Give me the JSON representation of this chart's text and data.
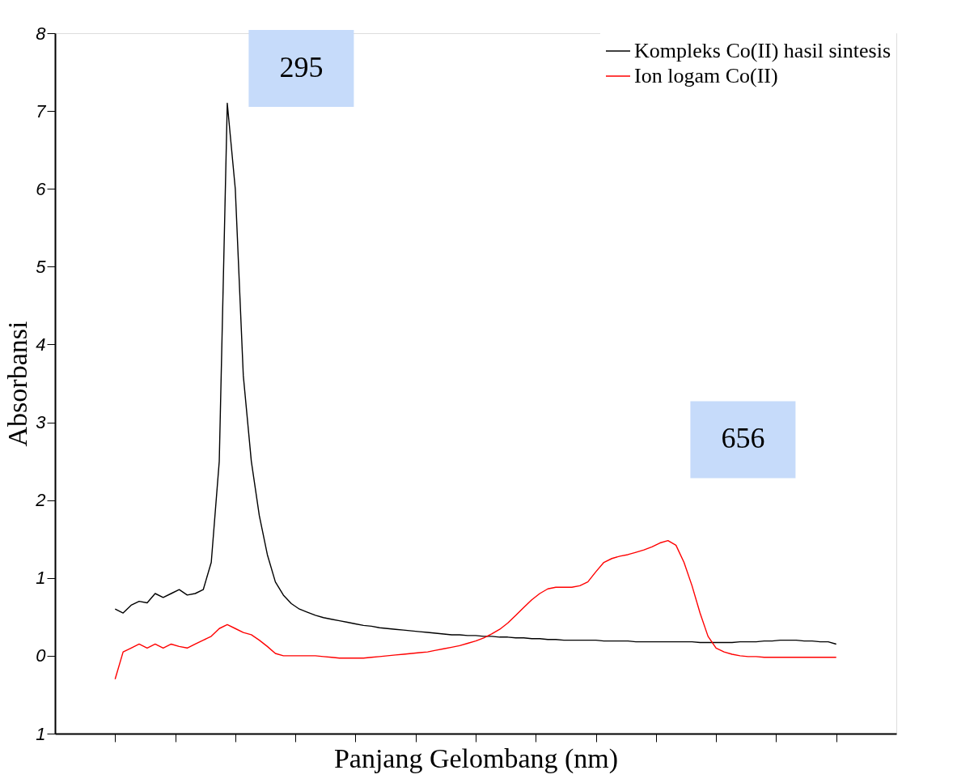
{
  "chart_data": {
    "type": "line",
    "xlabel": "Panjang Gelombang (nm)",
    "ylabel": "Absorbansi",
    "categories": [
      null,
      null,
      null,
      null,
      null,
      null,
      null,
      null,
      null,
      null,
      null,
      null,
      null,
      null,
      null,
      null,
      null,
      null,
      null,
      null,
      null,
      null,
      null,
      null,
      null,
      null,
      null,
      null,
      null,
      null,
      null,
      null,
      null,
      null,
      null,
      null,
      null,
      null,
      null,
      null,
      null,
      null,
      null,
      null,
      null,
      null,
      null,
      null,
      null,
      null,
      null,
      null,
      null,
      null,
      null,
      null,
      null,
      null,
      null,
      null,
      null,
      null,
      null,
      null,
      null,
      null,
      null,
      null,
      null,
      null,
      null,
      null,
      null,
      null,
      null,
      null,
      null,
      null,
      null,
      null,
      null,
      null,
      null,
      null,
      null,
      null,
      null,
      null,
      null,
      null,
      null
    ],
    "series": [
      {
        "name": "Kompleks Co(II) hasil sintesis",
        "color": "#000000",
        "values": [
          0.6,
          0.55,
          0.65,
          0.7,
          0.68,
          0.8,
          0.75,
          0.8,
          0.85,
          0.78,
          0.8,
          0.85,
          1.2,
          2.5,
          7.1,
          6.0,
          3.6,
          2.5,
          1.8,
          1.3,
          0.95,
          0.78,
          0.67,
          0.6,
          0.56,
          0.52,
          0.49,
          0.47,
          0.45,
          0.43,
          0.41,
          0.39,
          0.38,
          0.36,
          0.35,
          0.34,
          0.33,
          0.32,
          0.31,
          0.3,
          0.29,
          0.28,
          0.27,
          0.27,
          0.26,
          0.26,
          0.25,
          0.25,
          0.24,
          0.24,
          0.23,
          0.23,
          0.22,
          0.22,
          0.21,
          0.21,
          0.2,
          0.2,
          0.2,
          0.2,
          0.2,
          0.19,
          0.19,
          0.19,
          0.19,
          0.18,
          0.18,
          0.18,
          0.18,
          0.18,
          0.18,
          0.18,
          0.18,
          0.17,
          0.17,
          0.17,
          0.17,
          0.17,
          0.18,
          0.18,
          0.18,
          0.19,
          0.19,
          0.2,
          0.2,
          0.2,
          0.19,
          0.19,
          0.18,
          0.18,
          0.15
        ]
      },
      {
        "name": "Ion logam Co(II)",
        "color": "#ff0000",
        "values": [
          -0.3,
          0.05,
          0.1,
          0.15,
          0.1,
          0.15,
          0.1,
          0.15,
          0.12,
          0.1,
          0.15,
          0.2,
          0.25,
          0.35,
          0.4,
          0.35,
          0.3,
          0.27,
          0.2,
          0.12,
          0.03,
          0.0,
          0.0,
          0.0,
          0.0,
          0.0,
          -0.01,
          -0.02,
          -0.03,
          -0.03,
          -0.03,
          -0.03,
          -0.02,
          -0.01,
          0.0,
          0.01,
          0.02,
          0.03,
          0.04,
          0.05,
          0.07,
          0.09,
          0.11,
          0.13,
          0.16,
          0.19,
          0.23,
          0.28,
          0.34,
          0.42,
          0.52,
          0.62,
          0.72,
          0.8,
          0.86,
          0.88,
          0.88,
          0.88,
          0.9,
          0.95,
          1.08,
          1.2,
          1.25,
          1.28,
          1.3,
          1.33,
          1.36,
          1.4,
          1.45,
          1.48,
          1.42,
          1.2,
          0.9,
          0.55,
          0.25,
          0.1,
          0.05,
          0.02,
          0.0,
          -0.01,
          -0.01,
          -0.02,
          -0.02,
          -0.02,
          -0.02,
          -0.02,
          -0.02,
          -0.02,
          -0.02,
          -0.02,
          -0.02
        ]
      }
    ],
    "ylim": [
      -1,
      8
    ],
    "yticks": [
      {
        "value": -1,
        "label": "1"
      },
      0,
      1,
      2,
      3,
      4,
      5,
      6,
      7,
      8
    ],
    "annotations": [
      "295",
      "656"
    ],
    "legend": "top right",
    "grid": false,
    "marker": "none",
    "line_style": "solid",
    "tick_labels": "y"
  }
}
